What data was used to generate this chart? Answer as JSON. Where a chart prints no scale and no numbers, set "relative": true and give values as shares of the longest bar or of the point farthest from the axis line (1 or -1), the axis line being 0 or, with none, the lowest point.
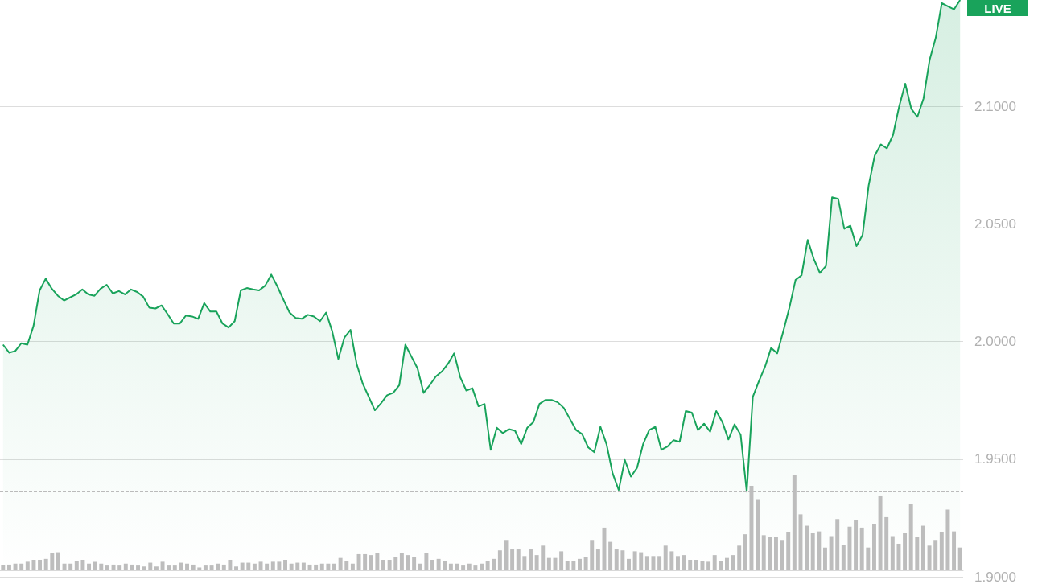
{
  "chart_data": [
    {
      "type": "area",
      "categories": [
        null,
        null,
        null,
        null,
        null,
        null,
        null,
        null,
        null,
        null,
        null,
        null,
        null,
        null,
        null,
        null,
        null,
        null,
        null,
        null,
        null,
        null,
        null,
        null,
        null,
        null,
        null,
        null,
        null,
        null,
        null,
        null,
        null,
        null,
        null,
        null,
        null,
        null,
        null,
        null,
        null,
        null,
        null,
        null,
        null,
        null,
        null,
        null,
        null,
        null,
        null,
        null,
        null,
        null,
        null,
        null,
        null,
        null,
        null,
        null,
        null,
        null,
        null,
        null,
        null,
        null,
        null,
        null,
        null,
        null,
        null,
        null,
        null,
        null,
        null,
        null,
        null,
        null,
        null,
        null,
        null,
        null,
        null,
        null,
        null,
        null,
        null,
        null,
        null,
        null,
        null,
        null,
        null,
        null,
        null,
        null,
        null,
        null,
        null,
        null,
        null,
        null,
        null,
        null,
        null,
        null,
        null,
        null,
        null,
        null,
        null,
        null,
        null,
        null,
        null,
        null,
        null,
        null,
        null,
        null,
        null,
        null,
        null,
        null,
        null,
        null,
        null,
        null,
        null,
        null,
        null,
        null,
        null,
        null,
        null,
        null,
        null,
        null,
        null,
        null,
        null,
        null,
        null,
        null,
        null,
        null,
        null,
        null,
        null,
        null,
        null,
        null,
        null,
        null,
        null,
        null,
        null,
        null
      ],
      "series": [
        {
          "color": "#19a35b",
          "values": [
            1.9987,
            1.9953,
            1.996,
            1.9993,
            1.9987,
            2.0067,
            2.0218,
            2.0268,
            2.0225,
            2.0195,
            2.0175,
            2.0188,
            2.0201,
            2.0222,
            2.0201,
            2.0195,
            2.0225,
            2.0242,
            2.0205,
            2.0215,
            2.0201,
            2.0222,
            2.0211,
            2.0191,
            2.0144,
            2.0141,
            2.0154,
            2.0117,
            2.0077,
            2.0077,
            2.0111,
            2.0107,
            2.0097,
            2.0164,
            2.0128,
            2.0128,
            2.0077,
            2.006,
            2.0087,
            2.0218,
            2.0228,
            2.0222,
            2.0218,
            2.0238,
            2.0285,
            2.0235,
            2.0178,
            2.0124,
            2.0101,
            2.0097,
            2.0114,
            2.0107,
            2.0087,
            2.0124,
            2.0044,
            1.9926,
            2.0017,
            2.005,
            1.9906,
            1.9822,
            1.9765,
            1.9708,
            1.9738,
            1.9772,
            1.9782,
            1.9815,
            1.9987,
            1.9936,
            1.9886,
            1.9782,
            1.9815,
            1.9852,
            1.9873,
            1.9906,
            1.995,
            1.9849,
            1.9792,
            1.9802,
            1.9725,
            1.9735,
            1.954,
            1.9634,
            1.9611,
            1.9628,
            1.9621,
            1.9564,
            1.9634,
            1.9658,
            1.9735,
            1.9752,
            1.9752,
            1.9742,
            1.9718,
            1.9671,
            1.9624,
            1.9607,
            1.955,
            1.953,
            1.9638,
            1.9564,
            1.944,
            1.9369,
            1.9497,
            1.9426,
            1.9463,
            1.9564,
            1.9624,
            1.9638,
            1.954,
            1.9554,
            1.9581,
            1.9574,
            1.9705,
            1.9698,
            1.9624,
            1.9651,
            1.9617,
            1.9705,
            1.9658,
            1.9584,
            1.9648,
            1.9604,
            1.9362,
            1.9765,
            1.9832,
            1.9893,
            1.9973,
            1.995,
            2.0044,
            2.0144,
            2.0262,
            2.0282,
            2.0433,
            2.0352,
            2.0292,
            2.0322,
            2.0614,
            2.0607,
            2.048,
            2.0493,
            2.0406,
            2.0453,
            2.0664,
            2.0792,
            2.0839,
            2.0822,
            2.0879,
            2.1,
            2.1097,
            2.099,
            2.0956,
            2.1034,
            2.1198,
            2.1292,
            2.144,
            2.1426,
            2.1413,
            2.1453
          ]
        }
      ],
      "ylim": [
        1.9,
        2.1453
      ],
      "yticks": [
        {
          "value": 1.9,
          "label": "1.9000"
        },
        {
          "value": 1.95,
          "label": "1.9500"
        },
        {
          "value": 2.0,
          "label": "2.0000"
        },
        {
          "value": 2.05,
          "label": "2.0500"
        },
        {
          "value": 2.1,
          "label": "2.1000"
        }
      ],
      "grid": "y",
      "tick_labels": "y",
      "ref_lines": [
        {
          "axis": "y",
          "value": 1.9362,
          "line_style": "dashed",
          "color": "#bbbbbb"
        }
      ],
      "annotations": [
        "LIVE"
      ]
    },
    {
      "type": "bar",
      "relative": true,
      "categories": [
        null,
        null,
        null,
        null,
        null,
        null,
        null,
        null,
        null,
        null,
        null,
        null,
        null,
        null,
        null,
        null,
        null,
        null,
        null,
        null,
        null,
        null,
        null,
        null,
        null,
        null,
        null,
        null,
        null,
        null,
        null,
        null,
        null,
        null,
        null,
        null,
        null,
        null,
        null,
        null,
        null,
        null,
        null,
        null,
        null,
        null,
        null,
        null,
        null,
        null,
        null,
        null,
        null,
        null,
        null,
        null,
        null,
        null,
        null,
        null,
        null,
        null,
        null,
        null,
        null,
        null,
        null,
        null,
        null,
        null,
        null,
        null,
        null,
        null,
        null,
        null,
        null,
        null,
        null,
        null,
        null,
        null,
        null,
        null,
        null,
        null,
        null,
        null,
        null,
        null,
        null,
        null,
        null,
        null,
        null,
        null,
        null,
        null,
        null,
        null,
        null,
        null,
        null,
        null,
        null,
        null,
        null,
        null,
        null,
        null,
        null,
        null,
        null,
        null,
        null,
        null,
        null,
        null,
        null,
        null,
        null,
        null,
        null,
        null,
        null,
        null,
        null,
        null,
        null,
        null,
        null,
        null,
        null,
        null,
        null,
        null,
        null,
        null,
        null,
        null,
        null,
        null,
        null,
        null,
        null,
        null,
        null,
        null,
        null,
        null,
        null,
        null,
        null,
        null,
        null,
        null,
        null
      ],
      "series": [
        {
          "color": "#bdbdbd",
          "values": [
            0.05,
            0.06,
            0.07,
            0.07,
            0.09,
            0.11,
            0.11,
            0.12,
            0.18,
            0.19,
            0.07,
            0.07,
            0.1,
            0.11,
            0.07,
            0.09,
            0.07,
            0.05,
            0.06,
            0.05,
            0.07,
            0.06,
            0.05,
            0.04,
            0.08,
            0.04,
            0.09,
            0.05,
            0.05,
            0.08,
            0.07,
            0.06,
            0.03,
            0.05,
            0.05,
            0.07,
            0.06,
            0.11,
            0.04,
            0.08,
            0.08,
            0.07,
            0.09,
            0.07,
            0.09,
            0.09,
            0.11,
            0.07,
            0.08,
            0.08,
            0.06,
            0.06,
            0.07,
            0.07,
            0.07,
            0.13,
            0.1,
            0.07,
            0.17,
            0.17,
            0.16,
            0.18,
            0.11,
            0.11,
            0.14,
            0.18,
            0.16,
            0.14,
            0.07,
            0.18,
            0.11,
            0.12,
            0.1,
            0.07,
            0.07,
            0.05,
            0.07,
            0.05,
            0.07,
            0.1,
            0.12,
            0.21,
            0.32,
            0.22,
            0.22,
            0.15,
            0.22,
            0.16,
            0.26,
            0.13,
            0.13,
            0.2,
            0.1,
            0.1,
            0.12,
            0.14,
            0.32,
            0.22,
            0.45,
            0.3,
            0.22,
            0.21,
            0.12,
            0.2,
            0.19,
            0.15,
            0.15,
            0.15,
            0.26,
            0.2,
            0.15,
            0.16,
            0.11,
            0.11,
            0.1,
            0.09,
            0.16,
            0.1,
            0.13,
            0.16,
            0.26,
            0.38,
            0.89,
            0.75,
            0.37,
            0.35,
            0.35,
            0.32,
            0.4,
            1,
            0.59,
            0.47,
            0.39,
            0.41,
            0.24,
            0.36,
            0.54,
            0.27,
            0.46,
            0.53,
            0.45,
            0.24,
            0.49,
            0.78,
            0.56,
            0.36,
            0.28,
            0.39,
            0.7,
            0.35,
            0.47,
            0.26,
            0.32,
            0.4,
            0.64,
            0.41,
            0.24
          ]
        }
      ]
    }
  ]
}
